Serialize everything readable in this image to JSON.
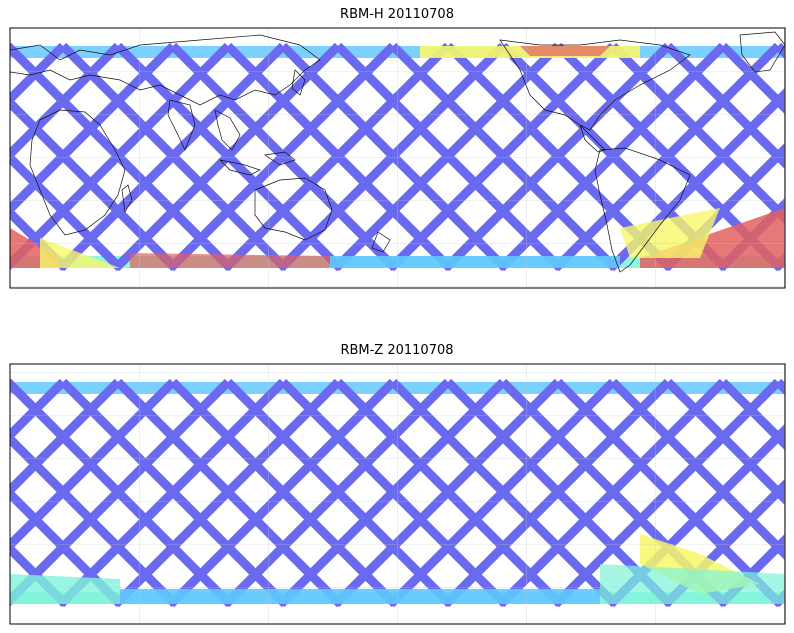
{
  "panels": [
    {
      "title": "RBM-H 20110708",
      "palette": {
        "low": "#6a6af0",
        "mid": "#63c8ff",
        "cyan": "#7ff4d8",
        "yellow": "#f8f86a",
        "high": "#e36060"
      }
    },
    {
      "title": "RBM-Z 20110708",
      "palette": {
        "low": "#6a6af0",
        "mid": "#63c8ff",
        "cyan": "#7ff4d8",
        "yellow": "#f8f86a",
        "high": "#e36060"
      }
    }
  ],
  "legend": null
}
